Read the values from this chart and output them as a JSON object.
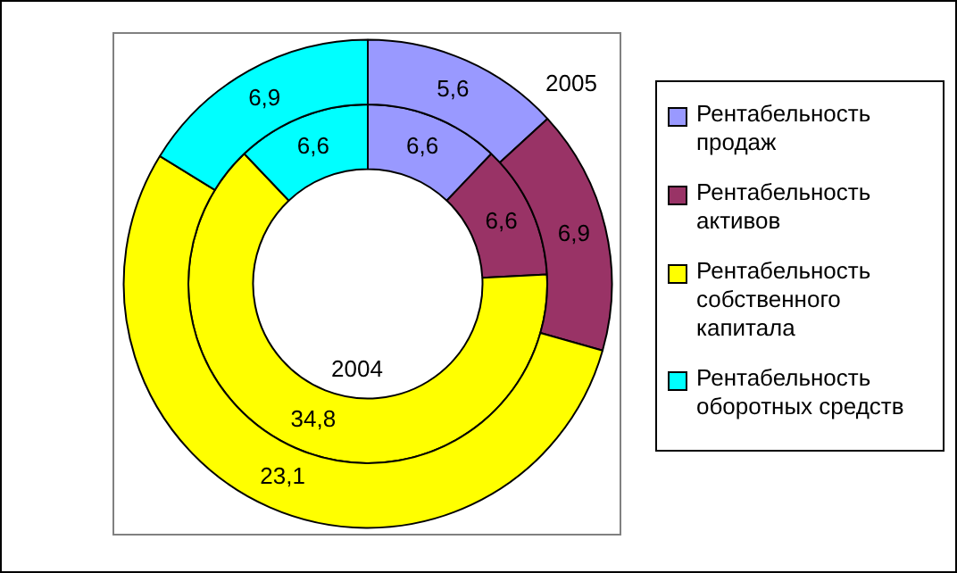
{
  "chart_data": {
    "type": "donut",
    "categories": [
      "Рентабельность продаж",
      "Рентабельность активов",
      "Рентабельность собственного капитала",
      "Рентабельность оборотных средств"
    ],
    "series": [
      {
        "name": "2005",
        "values": [
          5.6,
          6.9,
          23.1,
          6.9
        ],
        "value_labels": [
          "5,6",
          "6,9",
          "23,1",
          "6,9"
        ],
        "colors": [
          "#9999ff",
          "#993366",
          "#ffff00",
          "#00ffff"
        ]
      },
      {
        "name": "2004",
        "values": [
          6.6,
          6.6,
          34.8,
          6.6
        ],
        "value_labels": [
          "6,6",
          "6,6",
          "34,8",
          "6,6"
        ],
        "colors": [
          "#9999ff",
          "#993366",
          "#ffff00",
          "#00ffff"
        ]
      }
    ],
    "legend": "right"
  }
}
